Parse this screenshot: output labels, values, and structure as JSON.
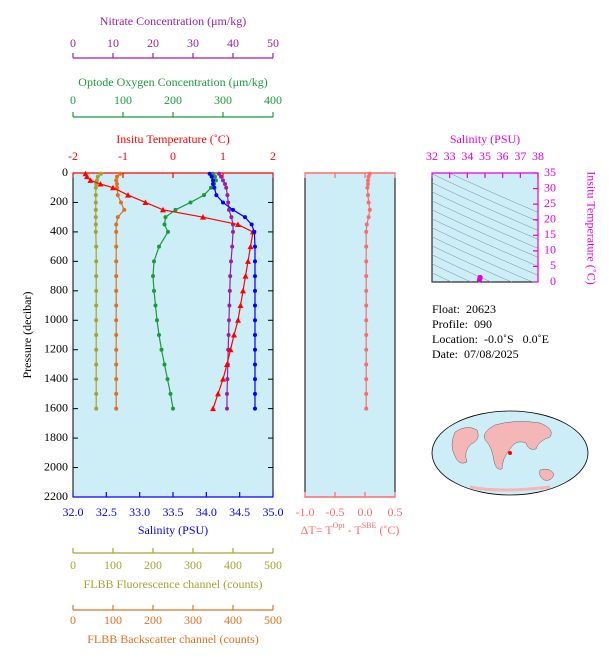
{
  "chart_data": [
    {
      "type": "line",
      "ylabel": "Pressure (decibar)",
      "ylim": [
        0,
        2200
      ],
      "yreverse": true,
      "yticks": [
        0,
        200,
        400,
        600,
        800,
        1000,
        1200,
        1400,
        1600,
        1800,
        2000,
        2200
      ],
      "y": [
        5,
        25,
        50,
        75,
        100,
        150,
        200,
        250,
        300,
        350,
        400,
        500,
        600,
        700,
        800,
        900,
        1000,
        1100,
        1200,
        1300,
        1400,
        1500,
        1600
      ],
      "axes": [
        {
          "label": "Nitrate Concentration (μm/kg)",
          "color": "#9b1fa3",
          "xlim": [
            0,
            50
          ],
          "xticks": [
            0,
            10,
            20,
            30,
            40,
            50
          ],
          "marker": "circle",
          "values": [
            36.5,
            37,
            37.5,
            38,
            38.3,
            38.6,
            38.8,
            39,
            39.6,
            40,
            40,
            39.8,
            39.5,
            39.3,
            39.2,
            39.1,
            39,
            38.9,
            38.8,
            38.7,
            38.6,
            38.5,
            38.5
          ]
        },
        {
          "label": "Optode Oxygen Concentration (μm/kg)",
          "color": "#1a9a3a",
          "xlim": [
            0,
            400
          ],
          "xticks": [
            0,
            100,
            200,
            300,
            400
          ],
          "marker": "circle",
          "values": [
            280,
            284,
            286,
            282,
            276,
            262,
            235,
            205,
            185,
            183,
            190,
            172,
            162,
            160,
            162,
            165,
            168,
            172,
            177,
            183,
            189,
            195,
            200
          ]
        },
        {
          "label": "Insitu Temperature (˚C)",
          "color": "#ff0000",
          "xlim": [
            -2,
            2
          ],
          "xticks": [
            -2,
            -1,
            0,
            1,
            2
          ],
          "marker": "triangle",
          "values": [
            -1.75,
            -1.72,
            -1.65,
            -1.45,
            -1.2,
            -0.9,
            -0.55,
            -0.2,
            0.6,
            1.3,
            1.6,
            1.55,
            1.5,
            1.45,
            1.4,
            1.35,
            1.3,
            1.22,
            1.15,
            1.08,
            1.0,
            0.9,
            0.8
          ]
        },
        {
          "label": "Salinity (PSU)",
          "color": "#0000ff",
          "xlim": [
            32,
            35
          ],
          "xticks": [
            {
              "value": 32,
              "label": "32.0"
            },
            32.5,
            {
              "value": 33,
              "label": "33.0"
            },
            33.5,
            {
              "value": 34,
              "label": "34.0"
            },
            34.5,
            {
              "value": 35,
              "label": "35.0"
            }
          ],
          "marker": "circle",
          "values": [
            34.05,
            34.08,
            34.1,
            34.1,
            34.12,
            34.15,
            34.25,
            34.4,
            34.58,
            34.68,
            34.72,
            34.73,
            34.73,
            34.73,
            34.73,
            34.73,
            34.73,
            34.73,
            34.73,
            34.73,
            34.73,
            34.73,
            34.73
          ]
        },
        {
          "label": "FLBB Fluorescence channel (counts)",
          "color": "#a3a333",
          "xlim": [
            0,
            500
          ],
          "xticks": [
            0,
            100,
            200,
            300,
            400,
            500
          ],
          "marker": "circle",
          "values": [
            70,
            62,
            60,
            58,
            57,
            57,
            57,
            57,
            57,
            57,
            57,
            58,
            58,
            58,
            58,
            58,
            58,
            58,
            58,
            58,
            58,
            58,
            58
          ]
        },
        {
          "label": "FLBB Backscatter channel (counts)",
          "color": "#e07020",
          "xlim": [
            0,
            500
          ],
          "xticks": [
            0,
            100,
            200,
            300,
            400,
            500
          ],
          "marker": "circle",
          "values": [
            118,
            110,
            108,
            110,
            110,
            112,
            120,
            128,
            112,
            108,
            108,
            108,
            108,
            108,
            108,
            108,
            108,
            108,
            108,
            108,
            108,
            108,
            108
          ]
        }
      ]
    },
    {
      "type": "line",
      "xlabel_parts": [
        "ΔT= T",
        "Opt",
        " - T",
        "SBE",
        " (˚C)"
      ],
      "color": "#ff6b6b",
      "xlim": [
        -1,
        0.5
      ],
      "xticks": [
        {
          "value": -1,
          "label": "-1.0"
        },
        -0.5,
        {
          "value": 0,
          "label": "0.0"
        },
        0.5
      ],
      "ylim": [
        0,
        2200
      ],
      "yreverse": true,
      "y": [
        5,
        25,
        50,
        75,
        100,
        150,
        200,
        250,
        300,
        350,
        400,
        500,
        600,
        700,
        800,
        900,
        1000,
        1100,
        1200,
        1300,
        1400,
        1500,
        1600
      ],
      "values": [
        0.08,
        0.06,
        0.05,
        0.05,
        0.04,
        0.05,
        0.06,
        0.08,
        0.06,
        0.03,
        0.02,
        0.02,
        0.02,
        0.02,
        0.02,
        0.02,
        0.02,
        0.02,
        0.02,
        0.02,
        0.02,
        0.02,
        0.02
      ]
    },
    {
      "type": "scatter",
      "xlabel": "Salinity (PSU)",
      "ylabel": "Insitu Temperature (˚C)",
      "color": "#e000e0",
      "xlim": [
        32,
        38
      ],
      "xticks": [
        32,
        33,
        34,
        35,
        36,
        37,
        38
      ],
      "ylim": [
        0,
        35
      ],
      "yticks": [
        0,
        5,
        10,
        15,
        20,
        25,
        30,
        35
      ],
      "x": [
        34.68,
        34.7,
        34.72,
        34.73
      ],
      "y": [
        0.6,
        1.1,
        1.5,
        1.3
      ]
    }
  ],
  "info": [
    "Float:  20623",
    "Profile:  090",
    "Location:  -0.0˚S   0.0˚E",
    "Date:  07/08/2025"
  ]
}
